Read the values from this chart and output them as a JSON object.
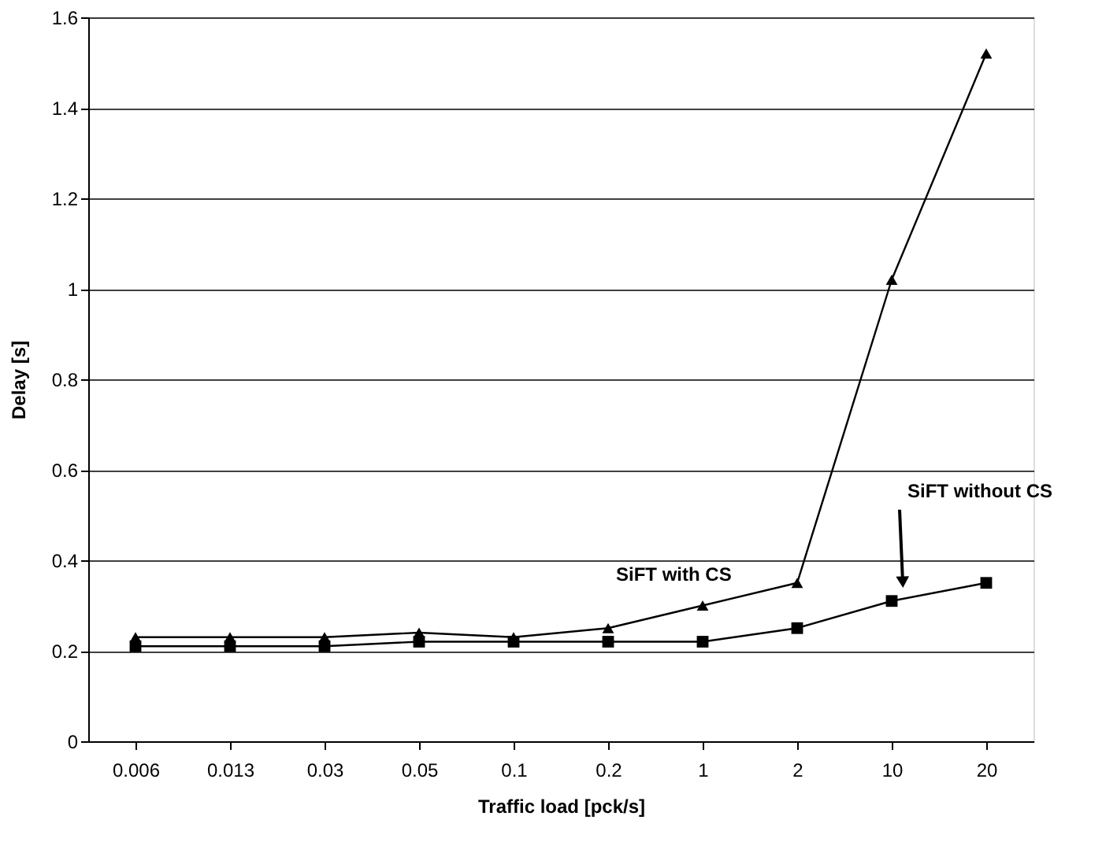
{
  "chart_data": {
    "type": "line",
    "xlabel": "Traffic load [pck/s]",
    "ylabel": "Delay [s]",
    "categories": [
      "0.006",
      "0.013",
      "0.03",
      "0.05",
      "0.1",
      "0.2",
      "1",
      "2",
      "10",
      "20"
    ],
    "series": [
      {
        "name": "SiFT with CS",
        "color": "#000000",
        "marker": "triangle",
        "values": [
          0.23,
          0.23,
          0.23,
          0.24,
          0.23,
          0.25,
          0.3,
          0.35,
          1.02,
          1.52
        ]
      },
      {
        "name": "SiFT without CS",
        "color": "#000000",
        "marker": "square",
        "values": [
          0.21,
          0.21,
          0.21,
          0.22,
          0.22,
          0.22,
          0.22,
          0.25,
          0.31,
          0.35
        ]
      }
    ],
    "ylim": [
      0,
      1.6
    ],
    "yticks": [
      0,
      0.2,
      0.4,
      0.6,
      0.8,
      1,
      1.2,
      1.4,
      1.6
    ],
    "grid": "y",
    "legend": false,
    "line_style": "solid"
  }
}
